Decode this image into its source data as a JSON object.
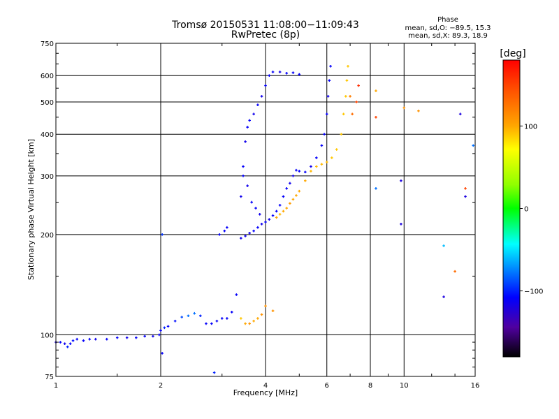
{
  "chart_data": {
    "type": "scatter",
    "title": "Tromsø 20150531 11:08:00−11:09:43",
    "subtitle": "RwPretec (8p)",
    "xlabel": "Frequency [MHz]",
    "ylabel": "Stationary phase Virtual Height [km]",
    "x_scale": "log",
    "y_scale": "log",
    "xlim": [
      1,
      16
    ],
    "ylim": [
      75,
      750
    ],
    "x_ticks": [
      1,
      2,
      4,
      6,
      8,
      10,
      16
    ],
    "x_tick_labels": [
      "1",
      "2",
      "4",
      "6",
      "8",
      "10",
      "16"
    ],
    "y_ticks": [
      75,
      100,
      200,
      300,
      400,
      500,
      600,
      750
    ],
    "y_tick_labels": [
      "75",
      "100",
      "200",
      "300",
      "400",
      "500",
      "600",
      "750"
    ],
    "grid": true,
    "stats": {
      "title": "Phase",
      "line_o": "mean, sd,O: −89.5, 15.3",
      "line_x": "mean, sd,X: 89.3, 18.9"
    },
    "colorbar": {
      "label": "[deg]",
      "range": [
        -180,
        180
      ],
      "ticks": [
        100,
        0,
        -100
      ],
      "tick_labels": [
        "100",
        "0",
        "−100"
      ]
    },
    "points": [
      [
        1.0,
        95,
        -120
      ],
      [
        1.03,
        95,
        -110
      ],
      [
        1.06,
        94,
        -115
      ],
      [
        1.08,
        92,
        -100
      ],
      [
        1.1,
        94,
        -110
      ],
      [
        1.12,
        96,
        -105
      ],
      [
        1.15,
        97,
        -110
      ],
      [
        1.2,
        96,
        -110
      ],
      [
        1.25,
        97,
        -110
      ],
      [
        1.3,
        97,
        -115
      ],
      [
        1.4,
        97,
        -110
      ],
      [
        1.5,
        98,
        -110
      ],
      [
        1.6,
        98,
        -115
      ],
      [
        1.7,
        98,
        -110
      ],
      [
        1.8,
        99,
        -110
      ],
      [
        1.9,
        99,
        -115
      ],
      [
        1.98,
        100,
        -110
      ],
      [
        2.0,
        103,
        -110
      ],
      [
        2.05,
        105,
        -100
      ],
      [
        2.1,
        106,
        -110
      ],
      [
        2.2,
        110,
        -105
      ],
      [
        2.3,
        113,
        -90
      ],
      [
        2.4,
        114,
        -80
      ],
      [
        2.5,
        116,
        -80
      ],
      [
        2.6,
        114,
        -100
      ],
      [
        2.7,
        108,
        -110
      ],
      [
        2.8,
        108,
        -110
      ],
      [
        2.9,
        110,
        -110
      ],
      [
        3.0,
        112,
        -110
      ],
      [
        3.1,
        112,
        -110
      ],
      [
        3.2,
        117,
        -110
      ],
      [
        3.3,
        132,
        -110
      ],
      [
        3.4,
        112,
        90
      ],
      [
        3.5,
        108,
        100
      ],
      [
        3.6,
        108,
        110
      ],
      [
        3.7,
        110,
        100
      ],
      [
        3.8,
        112,
        100
      ],
      [
        3.9,
        115,
        110
      ],
      [
        4.0,
        122,
        110
      ],
      [
        4.2,
        118,
        110
      ],
      [
        2.02,
        200,
        -95
      ],
      [
        2.02,
        88,
        -110
      ],
      [
        2.85,
        77,
        -100
      ],
      [
        2.95,
        200,
        -110
      ],
      [
        3.05,
        205,
        -110
      ],
      [
        3.1,
        210,
        -110
      ],
      [
        3.4,
        195,
        -115
      ],
      [
        3.5,
        198,
        -115
      ],
      [
        3.6,
        202,
        -115
      ],
      [
        3.7,
        205,
        -110
      ],
      [
        3.8,
        210,
        -110
      ],
      [
        3.9,
        215,
        -115
      ],
      [
        4.0,
        218,
        -110
      ],
      [
        4.1,
        222,
        -115
      ],
      [
        4.2,
        228,
        -110
      ],
      [
        4.3,
        235,
        -110
      ],
      [
        4.4,
        245,
        -110
      ],
      [
        4.5,
        260,
        -110
      ],
      [
        4.6,
        275,
        -110
      ],
      [
        4.7,
        285,
        -115
      ],
      [
        4.8,
        300,
        -115
      ],
      [
        4.9,
        312,
        -110
      ],
      [
        5.0,
        310,
        -110
      ],
      [
        5.2,
        308,
        -110
      ],
      [
        5.4,
        320,
        -115
      ],
      [
        5.6,
        340,
        -110
      ],
      [
        5.8,
        370,
        -110
      ],
      [
        5.9,
        400,
        -110
      ],
      [
        6.0,
        460,
        -110
      ],
      [
        6.05,
        520,
        -115
      ],
      [
        6.1,
        580,
        -110
      ],
      [
        6.15,
        640,
        -110
      ],
      [
        3.4,
        260,
        -115
      ],
      [
        3.45,
        320,
        -110
      ],
      [
        3.5,
        380,
        -115
      ],
      [
        3.55,
        420,
        -110
      ],
      [
        3.6,
        440,
        -110
      ],
      [
        3.7,
        460,
        -115
      ],
      [
        3.8,
        490,
        -110
      ],
      [
        3.9,
        520,
        -115
      ],
      [
        4.0,
        560,
        -110
      ],
      [
        4.1,
        600,
        -110
      ],
      [
        4.2,
        615,
        -110
      ],
      [
        4.4,
        615,
        -115
      ],
      [
        4.6,
        610,
        -110
      ],
      [
        4.8,
        612,
        -110
      ],
      [
        5.0,
        605,
        -110
      ],
      [
        3.45,
        300,
        -110
      ],
      [
        3.55,
        280,
        -115
      ],
      [
        3.65,
        250,
        -110
      ],
      [
        3.75,
        240,
        -110
      ],
      [
        3.85,
        230,
        -115
      ],
      [
        4.3,
        225,
        100
      ],
      [
        4.4,
        230,
        95
      ],
      [
        4.5,
        235,
        100
      ],
      [
        4.6,
        240,
        100
      ],
      [
        4.7,
        248,
        105
      ],
      [
        4.8,
        255,
        100
      ],
      [
        4.9,
        262,
        100
      ],
      [
        5.0,
        270,
        100
      ],
      [
        5.2,
        290,
        100
      ],
      [
        5.4,
        310,
        95
      ],
      [
        5.6,
        320,
        95
      ],
      [
        5.8,
        325,
        95
      ],
      [
        6.0,
        330,
        95
      ],
      [
        6.2,
        340,
        90
      ],
      [
        6.4,
        360,
        90
      ],
      [
        6.6,
        400,
        90
      ],
      [
        6.7,
        460,
        90
      ],
      [
        6.8,
        520,
        90
      ],
      [
        6.85,
        580,
        90
      ],
      [
        6.9,
        640,
        90
      ],
      [
        7.0,
        520,
        120
      ],
      [
        7.1,
        460,
        130
      ],
      [
        7.3,
        500,
        150
      ],
      [
        7.4,
        560,
        160
      ],
      [
        8.3,
        540,
        100
      ],
      [
        8.3,
        450,
        150
      ],
      [
        8.3,
        275,
        -80
      ],
      [
        10.0,
        480,
        110
      ],
      [
        11.0,
        470,
        110
      ],
      [
        14.5,
        460,
        -120
      ],
      [
        9.8,
        290,
        -120
      ],
      [
        9.8,
        215,
        -120
      ],
      [
        13.0,
        185,
        -60
      ],
      [
        13.0,
        130,
        -120
      ],
      [
        14.0,
        155,
        130
      ],
      [
        15.0,
        275,
        150
      ],
      [
        15.0,
        260,
        -120
      ],
      [
        15.8,
        370,
        -80
      ]
    ]
  }
}
